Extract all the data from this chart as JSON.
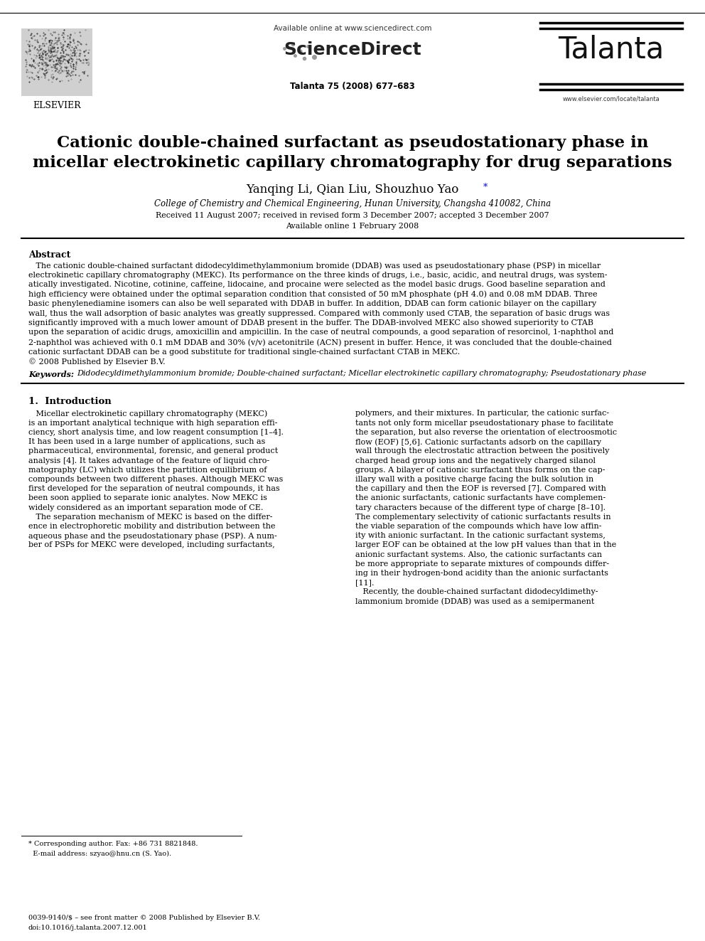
{
  "bg_color": "#ffffff",
  "title_line1": "Cationic double-chained surfactant as pseudostationary phase in",
  "title_line2": "micellar electrokinetic capillary chromatography for drug separations",
  "authors_plain": "Yanqing Li, Qian Liu, Shouzhuo Yao",
  "affiliation": "College of Chemistry and Chemical Engineering, Hunan University, Changsha 410082, China",
  "received": "Received 11 August 2007; received in revised form 3 December 2007; accepted 3 December 2007",
  "available_online": "Available online 1 February 2008",
  "journal_info": "Talanta 75 (2008) 677–683",
  "avail_online_header": "Available online at www.sciencedirect.com",
  "journal_name": "Talanta",
  "journal_url": "www.elsevier.com/locate/talanta",
  "elsevier_text": "ELSEVIER",
  "sciencedirect_text": "ScienceDirect",
  "abstract_title": "Abstract",
  "keywords_label": "Keywords:",
  "keywords_text": "Didodecyldimethylammonium bromide; Double-chained surfactant; Micellar electrokinetic capillary chromatography; Pseudostationary phase",
  "section1_title": "1.  Introduction",
  "footer_line1": "* Corresponding author. Fax: +86 731 8821848.",
  "footer_line2": "  E-mail address: szyao@hnu.cn (S. Yao).",
  "footer_bottom1": "0039-9140/$ – see front matter © 2008 Published by Elsevier B.V.",
  "footer_bottom2": "doi:10.1016/j.talanta.2007.12.001",
  "abstract_lines": [
    "   The cationic double-chained surfactant didodecyldimethylammonium bromide (DDAB) was used as pseudostationary phase (PSP) in micellar",
    "electrokinetic capillary chromatography (MEKC). Its performance on the three kinds of drugs, i.e., basic, acidic, and neutral drugs, was system-",
    "atically investigated. Nicotine, cotinine, caffeine, lidocaine, and procaine were selected as the model basic drugs. Good baseline separation and",
    "high efficiency were obtained under the optimal separation condition that consisted of 50 mM phosphate (pH 4.0) and 0.08 mM DDAB. Three",
    "basic phenylenediamine isomers can also be well separated with DDAB in buffer. In addition, DDAB can form cationic bilayer on the capillary",
    "wall, thus the wall adsorption of basic analytes was greatly suppressed. Compared with commonly used CTAB, the separation of basic drugs was",
    "significantly improved with a much lower amount of DDAB present in the buffer. The DDAB-involved MEKC also showed superiority to CTAB",
    "upon the separation of acidic drugs, amoxicillin and ampicillin. In the case of neutral compounds, a good separation of resorcinol, 1-naphthol and",
    "2-naphthol was achieved with 0.1 mM DDAB and 30% (v/v) acetonitrile (ACN) present in buffer. Hence, it was concluded that the double-chained",
    "cationic surfactant DDAB can be a good substitute for traditional single-chained surfactant CTAB in MEKC.",
    "© 2008 Published by Elsevier B.V."
  ],
  "col1_lines": [
    "   Micellar electrokinetic capillary chromatography (MEKC)",
    "is an important analytical technique with high separation effi-",
    "ciency, short analysis time, and low reagent consumption [1–4].",
    "It has been used in a large number of applications, such as",
    "pharmaceutical, environmental, forensic, and general product",
    "analysis [4]. It takes advantage of the feature of liquid chro-",
    "matography (LC) which utilizes the partition equilibrium of",
    "compounds between two different phases. Although MEKC was",
    "first developed for the separation of neutral compounds, it has",
    "been soon applied to separate ionic analytes. Now MEKC is",
    "widely considered as an important separation mode of CE.",
    "   The separation mechanism of MEKC is based on the differ-",
    "ence in electrophoretic mobility and distribution between the",
    "aqueous phase and the pseudostationary phase (PSP). A num-",
    "ber of PSPs for MEKC were developed, including surfactants,"
  ],
  "col2_lines": [
    "polymers, and their mixtures. In particular, the cationic surfac-",
    "tants not only form micellar pseudostationary phase to facilitate",
    "the separation, but also reverse the orientation of electroosmotic",
    "flow (EOF) [5,6]. Cationic surfactants adsorb on the capillary",
    "wall through the electrostatic attraction between the positively",
    "charged head group ions and the negatively charged silanol",
    "groups. A bilayer of cationic surfactant thus forms on the cap-",
    "illary wall with a positive charge facing the bulk solution in",
    "the capillary and then the EOF is reversed [7]. Compared with",
    "the anionic surfactants, cationic surfactants have complemen-",
    "tary characters because of the different type of charge [8–10].",
    "The complementary selectivity of cationic surfactants results in",
    "the viable separation of the compounds which have low affin-",
    "ity with anionic surfactant. In the cationic surfactant systems,",
    "larger EOF can be obtained at the low pH values than that in the",
    "anionic surfactant systems. Also, the cationic surfactants can",
    "be more appropriate to separate mixtures of compounds differ-",
    "ing in their hydrogen-bond acidity than the anionic surfactants",
    "[11].",
    "   Recently, the double-chained surfactant didodecyldimethy-",
    "lammonium bromide (DDAB) was used as a semipermanent"
  ]
}
